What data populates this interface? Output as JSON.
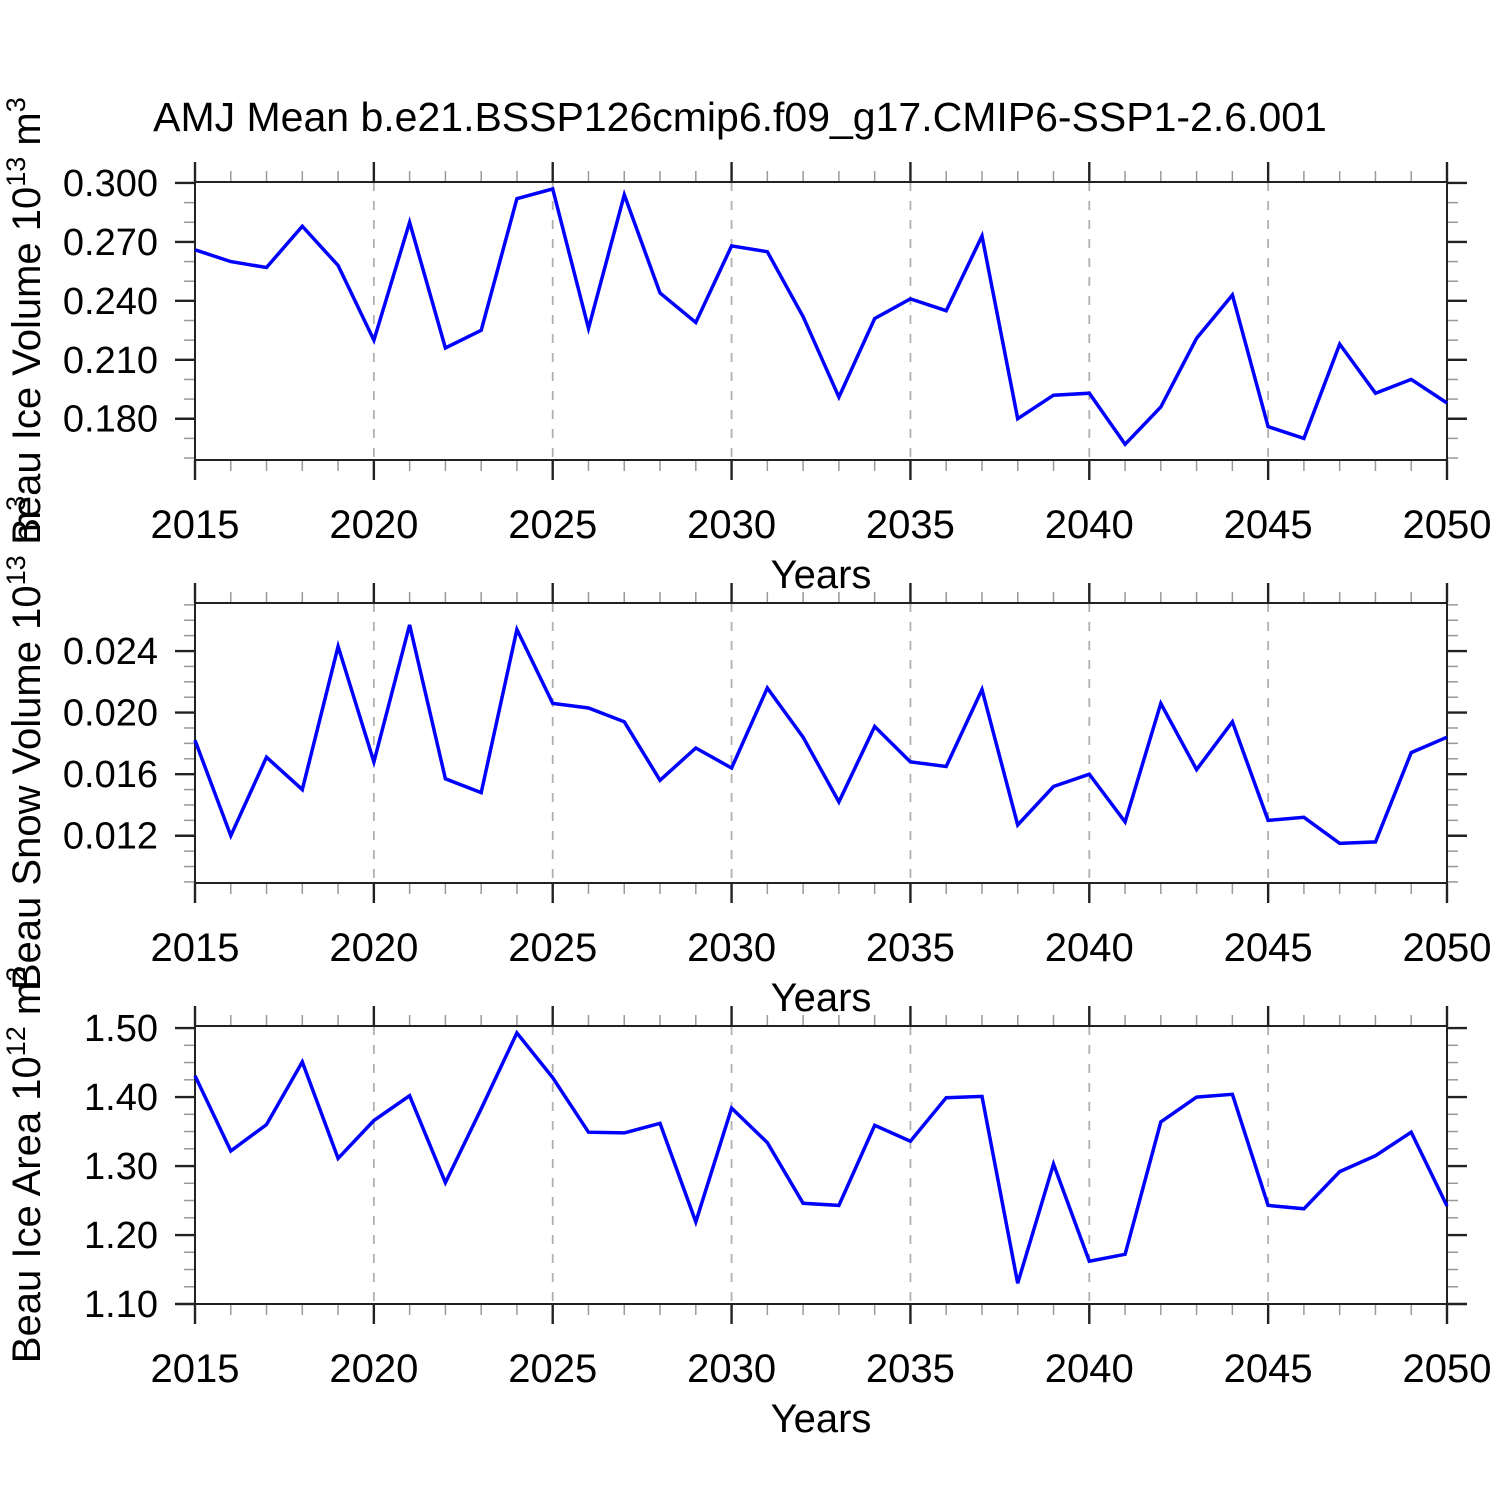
{
  "title": "AMJ Mean b.e21.BSSP126cmip6.f09_g17.CMIP6-SSP1-2.6.001",
  "colors": {
    "line": "#0000ff",
    "frame": "#222222",
    "major_tick": "#222222",
    "minor_tick": "#999999",
    "gridline": "#b0b0b0",
    "text": "#000000"
  },
  "years": [
    2015,
    2016,
    2017,
    2018,
    2019,
    2020,
    2021,
    2022,
    2023,
    2024,
    2025,
    2026,
    2027,
    2028,
    2029,
    2030,
    2031,
    2032,
    2033,
    2034,
    2035,
    2036,
    2037,
    2038,
    2039,
    2040,
    2041,
    2042,
    2043,
    2044,
    2045,
    2046,
    2047,
    2048,
    2049,
    2050
  ],
  "x_ticks_major": [
    2015,
    2020,
    2025,
    2030,
    2035,
    2040,
    2045,
    2050
  ],
  "x_tick_labels": [
    "2015",
    "2020",
    "2025",
    "2030",
    "2035",
    "2040",
    "2045",
    "2050"
  ],
  "x_gridlines": [
    2020,
    2025,
    2030,
    2035,
    2040,
    2045
  ],
  "chart_data": [
    {
      "type": "line",
      "name": "beau-ice-volume",
      "ylabel": {
        "text": "Beau Ice Volume",
        "scale": "10",
        "scale_exp": "13",
        "unit": "m",
        "unit_exp": "3"
      },
      "xlabel": "Years",
      "ylim": [
        0.159,
        0.3005
      ],
      "yticks_major": [
        0.18,
        0.21,
        0.24,
        0.27,
        0.3
      ],
      "ytick_labels": [
        "0.180",
        "0.210",
        "0.240",
        "0.270",
        "0.300"
      ],
      "ytick_minor_step": 0.01,
      "values": [
        0.266,
        0.26,
        0.257,
        0.278,
        0.258,
        0.22,
        0.28,
        0.216,
        0.225,
        0.292,
        0.297,
        0.226,
        0.294,
        0.244,
        0.229,
        0.268,
        0.265,
        0.232,
        0.191,
        0.231,
        0.241,
        0.235,
        0.273,
        0.18,
        0.192,
        0.193,
        0.167,
        0.186,
        0.221,
        0.243,
        0.176,
        0.17,
        0.218,
        0.193,
        0.2,
        0.188
      ]
    },
    {
      "type": "line",
      "name": "beau-snow-volume",
      "ylabel": {
        "text": "Beau Snow Volume",
        "scale": "10",
        "scale_exp": "13",
        "unit": "m",
        "unit_exp": "3"
      },
      "xlabel": "Years",
      "ylim": [
        0.00893,
        0.02712
      ],
      "yticks_major": [
        0.012,
        0.016,
        0.02,
        0.024
      ],
      "ytick_labels": [
        "0.012",
        "0.016",
        "0.020",
        "0.024"
      ],
      "ytick_minor_step": 0.001,
      "values": [
        0.0182,
        0.012,
        0.0171,
        0.015,
        0.0243,
        0.0168,
        0.0257,
        0.0157,
        0.0148,
        0.0254,
        0.0206,
        0.0203,
        0.0194,
        0.0156,
        0.0177,
        0.0164,
        0.0216,
        0.0184,
        0.0142,
        0.0191,
        0.0168,
        0.0165,
        0.0215,
        0.0127,
        0.0152,
        0.016,
        0.0129,
        0.0206,
        0.0163,
        0.0194,
        0.013,
        0.0132,
        0.0115,
        0.0116,
        0.0174,
        0.0184
      ]
    },
    {
      "type": "line",
      "name": "beau-ice-area",
      "ylabel": {
        "text": "Beau Ice Area",
        "scale": "10",
        "scale_exp": "12",
        "unit": "m",
        "unit_exp": "2"
      },
      "xlabel": "Years",
      "ylim": [
        1.1,
        1.503
      ],
      "yticks_major": [
        1.1,
        1.2,
        1.3,
        1.4,
        1.5
      ],
      "ytick_labels": [
        "1.10",
        "1.20",
        "1.30",
        "1.40",
        "1.50"
      ],
      "ytick_minor_step": 0.025,
      "values": [
        1.431,
        1.322,
        1.36,
        1.451,
        1.311,
        1.366,
        1.402,
        1.276,
        1.383,
        1.493,
        1.428,
        1.349,
        1.348,
        1.362,
        1.219,
        1.384,
        1.334,
        1.246,
        1.243,
        1.359,
        1.336,
        1.399,
        1.401,
        1.13,
        1.303,
        1.162,
        1.172,
        1.364,
        1.4,
        1.404,
        1.243,
        1.238,
        1.292,
        1.315,
        1.349,
        1.242
      ]
    }
  ]
}
